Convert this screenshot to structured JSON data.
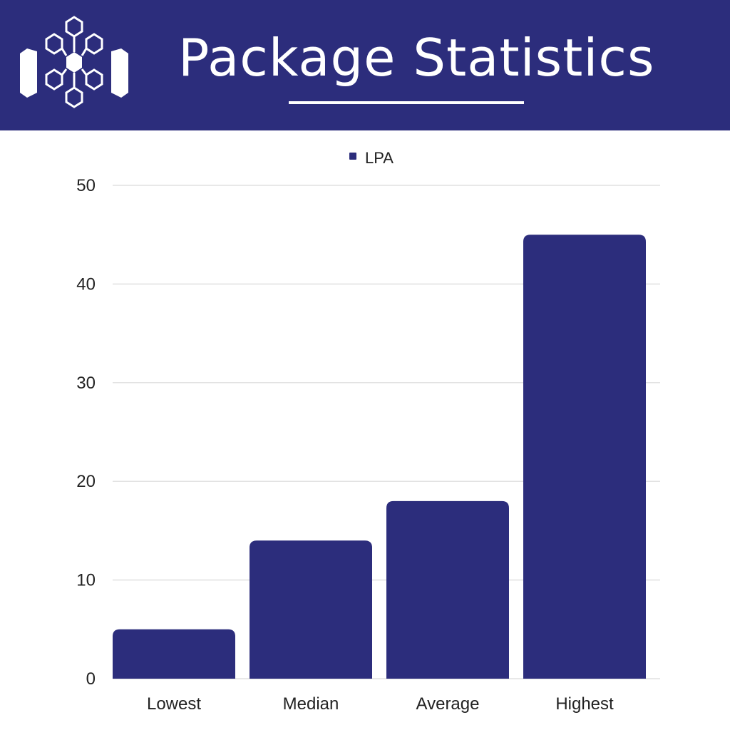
{
  "header": {
    "title": "Package Statistics",
    "logo_icon": "hexagon-network-logo",
    "background_color": "#2c2d7c"
  },
  "chart_data": {
    "type": "bar",
    "title": "Package Statistics",
    "categories": [
      "Lowest",
      "Median",
      "Average",
      "Highest"
    ],
    "series": [
      {
        "name": "LPA",
        "values": [
          5,
          14,
          18,
          45
        ],
        "color": "#2c2d7c"
      }
    ],
    "ylim": [
      0,
      50
    ],
    "yticks": [
      "0",
      "10",
      "20",
      "30",
      "40",
      "50"
    ],
    "xlabel": "",
    "ylabel": "",
    "grid": true,
    "legend_position": "top-center"
  }
}
